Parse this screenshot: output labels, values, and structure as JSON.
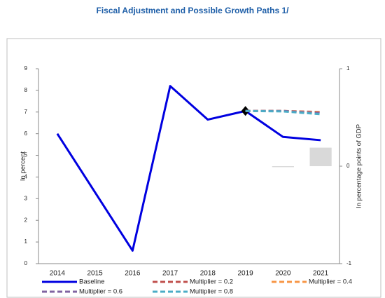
{
  "chart_data": {
    "type": "line",
    "title": "Fiscal Adjustment and Possible Growth Paths 1/",
    "y_label": "In percent",
    "y2_label": "In percentage points of GDP",
    "categories": [
      "2014",
      "2015",
      "2016",
      "2017",
      "2018",
      "2019",
      "2020",
      "2021"
    ],
    "series": [
      {
        "name": "Baseline",
        "color": "#0000e0",
        "style": "solid",
        "highlight_index": 5,
        "values": [
          6.0,
          3.3,
          0.6,
          8.2,
          6.65,
          7.05,
          5.85,
          5.7
        ]
      },
      {
        "name": "Multiplier = 0.2",
        "color": "#c0504d",
        "style": "dashed",
        "values": [
          null,
          null,
          null,
          null,
          null,
          7.05,
          7.05,
          7.0
        ]
      },
      {
        "name": "Multiplier = 0.4",
        "color": "#f79646",
        "style": "dashed",
        "values": [
          null,
          null,
          null,
          null,
          null,
          7.05,
          7.05,
          6.98
        ]
      },
      {
        "name": "Multiplier = 0.6",
        "color": "#8064a2",
        "style": "dashed",
        "values": [
          null,
          null,
          null,
          null,
          null,
          7.05,
          7.05,
          6.95
        ]
      },
      {
        "name": "Multiplier = 0.8",
        "color": "#4bacc6",
        "style": "dashed",
        "values": [
          null,
          null,
          null,
          null,
          null,
          7.05,
          7.03,
          6.9
        ]
      },
      {
        "type": "bar",
        "axis": "y2",
        "color": "#d9d9d9",
        "values": [
          null,
          null,
          null,
          null,
          null,
          null,
          -0.01,
          0.19
        ]
      }
    ],
    "ylim": [
      0,
      9
    ],
    "yticks": [
      0,
      1,
      2,
      3,
      4,
      5,
      6,
      7,
      8,
      9
    ],
    "y2lim": [
      -1,
      1
    ],
    "y2ticks": [
      -1,
      0,
      1
    ],
    "grid": false,
    "legend": "bottom"
  }
}
